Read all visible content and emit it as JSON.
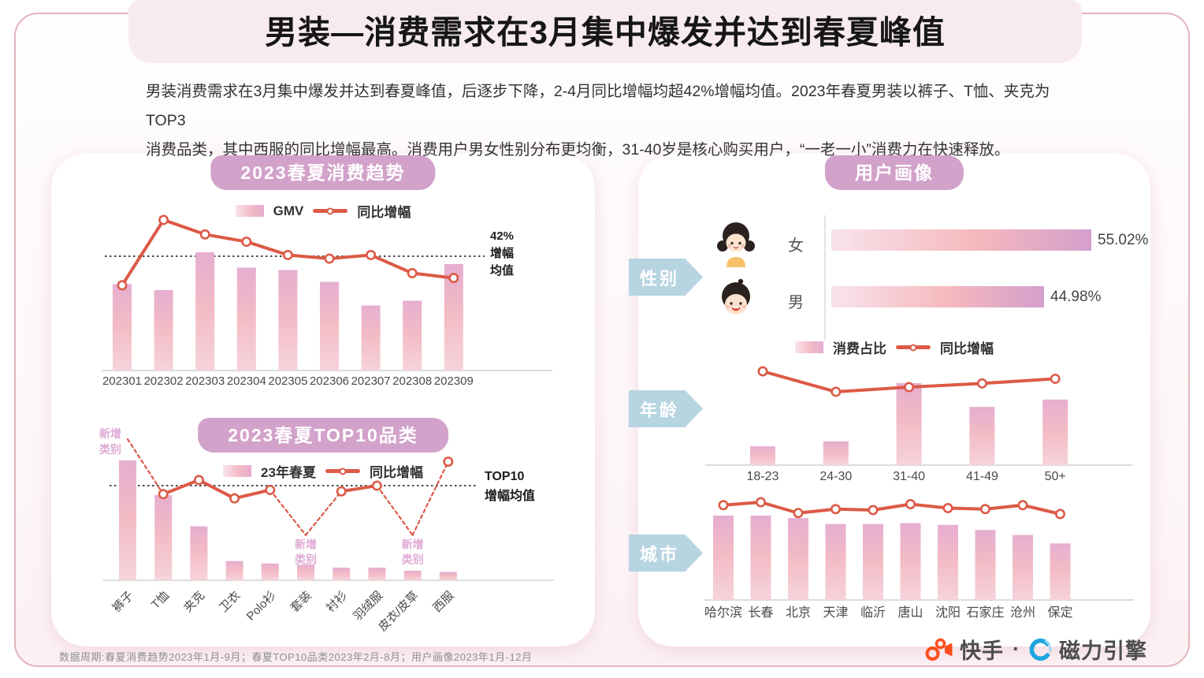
{
  "page": {
    "title": "男装—消费需求在3月集中爆发并达到春夏峰值",
    "intro": "男装消费需求在3月集中爆发并达到春夏峰值，后逐步下降，2-4月同比增幅均超42%增幅均值。2023年春夏男装以裤子、T恤、夹克为TOP3\n消费品类，其中西服的同比增幅最高。消费用户男女性别分布更均衡，31-40岁是核心购买用户，“一老一小”消费力在快速释放。",
    "right_panel_title": "用户画像",
    "footer_note": "数据周期:春夏消费趋势2023年1月-9月；春夏TOP10品类2023年2月-8月；用户画像2023年1月-12月",
    "brand": {
      "kuaishou": "快手",
      "separator": "·",
      "engine": "磁力引擎"
    }
  },
  "colors": {
    "accent_line": "#dc5a46",
    "bar_top": "#e6aed0",
    "bar_mid": "#f3bac5",
    "bar_bottom": "#f6d3da",
    "hbar_start": "#f8e3ec",
    "hbar_mid": "#f5b9bd",
    "hbar_end": "#d49fcc",
    "pill": "#d2a2ca",
    "section_arrow": "#b7d4e1",
    "new_category_label": "#dfa9d4",
    "mean_line": "#4a4a4a",
    "kuaishou_orange": "#fe4e1c",
    "engine_blue": "#1fa6e0"
  },
  "chart_data": [
    {
      "id": "spring-summer-trend",
      "type": "bar",
      "title": "2023春夏消费趋势",
      "legend_position": "top",
      "grid": false,
      "categories": [
        "202301",
        "202302",
        "202303",
        "202304",
        "202305",
        "202306",
        "202307",
        "202308",
        "202309"
      ],
      "series": [
        {
          "name": "GMV",
          "kind": "bar",
          "unit": "relative-index-0-100",
          "values": [
            73,
            68,
            100,
            87,
            85,
            75,
            55,
            59,
            90
          ]
        },
        {
          "name": "同比增幅",
          "kind": "line",
          "unit": "percent-estimated",
          "values": [
            30,
            57,
            51,
            48,
            42.5,
            41,
            42.5,
            35,
            33
          ]
        }
      ],
      "mean_line": {
        "value": 42,
        "label": "42%\n增幅\n均值"
      }
    },
    {
      "id": "top10-categories",
      "type": "bar",
      "title": "2023春夏TOP10品类",
      "legend_position": "top",
      "grid": false,
      "categories": [
        "裤子",
        "T恤",
        "夹克",
        "卫衣",
        "Polo衫",
        "套装",
        "衬衫",
        "羽绒服",
        "皮衣/皮草",
        "西服"
      ],
      "series": [
        {
          "name": "23年春夏",
          "kind": "bar",
          "unit": "relative-index-0-100",
          "values": [
            100,
            71,
            45,
            16,
            14,
            13,
            10.5,
            10.5,
            8,
            7
          ]
        },
        {
          "name": "同比增幅",
          "kind": "line",
          "unit": "relative-estimated",
          "values": [
            100,
            61,
            71,
            58,
            64,
            32,
            63,
            67,
            32,
            84
          ],
          "markers": [
            false,
            true,
            true,
            true,
            true,
            false,
            true,
            true,
            false,
            true
          ],
          "dashed_segments": [
            [
              0,
              1
            ],
            [
              4,
              6
            ],
            [
              7,
              9
            ]
          ],
          "new_category_points": [
            0,
            5,
            8
          ],
          "new_category_label": "新增类别"
        }
      ],
      "mean_line": {
        "value": 67,
        "label": "TOP10\n增幅均值"
      }
    },
    {
      "id": "gender-split",
      "type": "bar",
      "orientation": "horizontal",
      "section": "性别",
      "rows": [
        {
          "label": "女",
          "value": 55.02,
          "display": "55.02%"
        },
        {
          "label": "男",
          "value": 44.98,
          "display": "44.98%"
        }
      ]
    },
    {
      "id": "age-distribution",
      "type": "bar",
      "section": "年龄",
      "categories": [
        "18-23",
        "24-30",
        "31-40",
        "41-49",
        "50+"
      ],
      "series": [
        {
          "name": "消费占比",
          "kind": "bar",
          "unit": "relative-index-0-100",
          "values": [
            23,
            29,
            100,
            71,
            80
          ]
        },
        {
          "name": "同比增幅",
          "kind": "line",
          "unit": "relative-estimated",
          "values": [
            100,
            78,
            83,
            87,
            92
          ]
        }
      ]
    },
    {
      "id": "city-distribution",
      "type": "bar",
      "section": "城市",
      "categories": [
        "哈尔滨",
        "长春",
        "北京",
        "天津",
        "临沂",
        "唐山",
        "沈阳",
        "石家庄",
        "沧州",
        "保定"
      ],
      "series": [
        {
          "name": "消费占比",
          "kind": "bar",
          "unit": "relative-index-0-100",
          "values": [
            100,
            100,
            97,
            90,
            90,
            91,
            89,
            83,
            77,
            67
          ]
        },
        {
          "name": "同比增幅",
          "kind": "line",
          "unit": "relative-estimated",
          "values": [
            97,
            100,
            89,
            93,
            92,
            98,
            94,
            93,
            97,
            88
          ]
        }
      ]
    }
  ]
}
